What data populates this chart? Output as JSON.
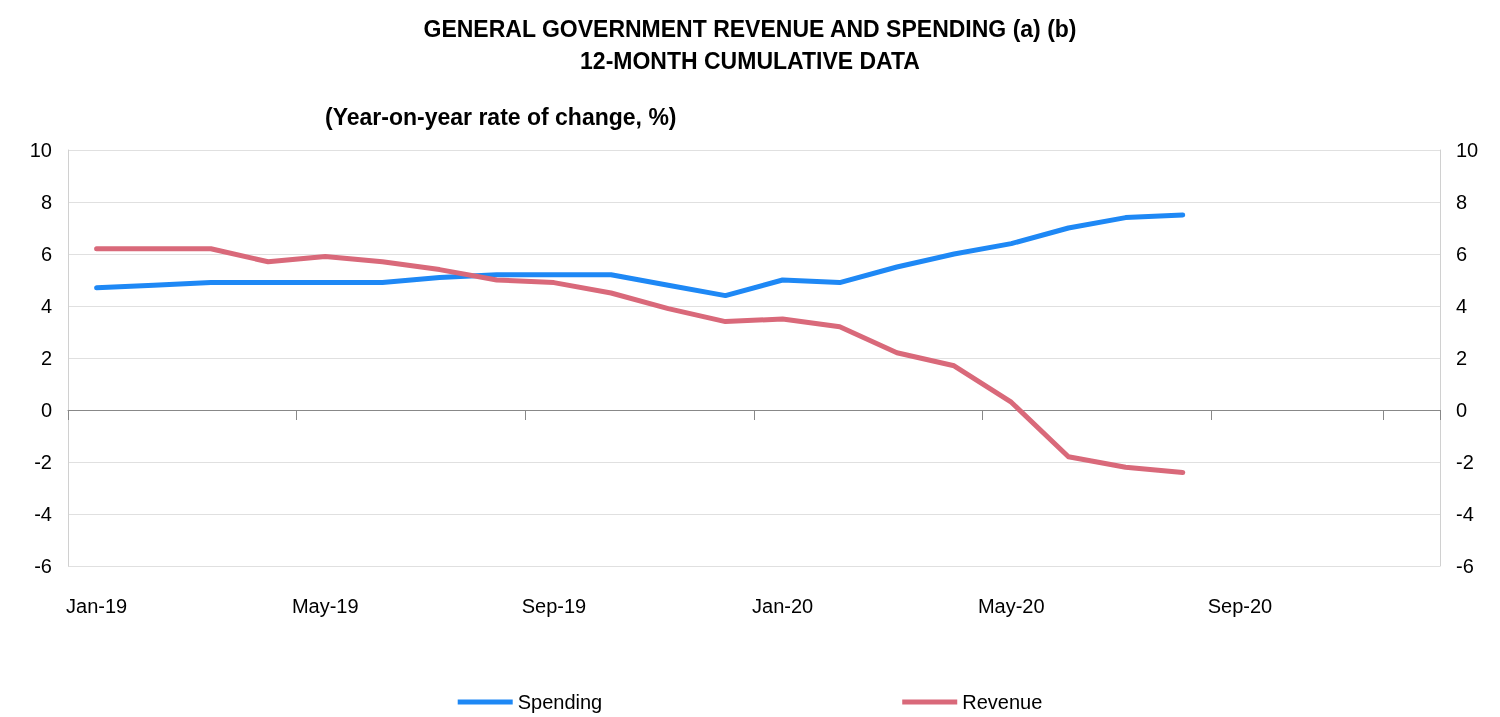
{
  "chart_data": {
    "type": "line",
    "title": "GENERAL GOVERNMENT REVENUE AND SPENDING (a) (b)\n12-MONTH CUMULATIVE DATA",
    "subtitle": "(Year-on-year rate of change, %)",
    "categories": [
      "Jan-19",
      null,
      null,
      null,
      "May-19",
      null,
      null,
      null,
      "Sep-19",
      null,
      null,
      null,
      "Jan-20",
      null,
      null,
      null,
      "May-20",
      null,
      null,
      null,
      "Sep-20",
      null,
      null,
      null
    ],
    "series": [
      {
        "name": "Spending",
        "color": "#1e88f5",
        "values": [
          4.7,
          4.8,
          4.9,
          4.9,
          4.9,
          4.9,
          5.1,
          5.2,
          5.2,
          5.2,
          4.8,
          4.4,
          5.0,
          4.9,
          5.5,
          6.0,
          6.4,
          7.0,
          7.4,
          7.5,
          null,
          null,
          null,
          null
        ]
      },
      {
        "name": "Revenue",
        "color": "#d9697a",
        "values": [
          6.2,
          6.2,
          6.2,
          5.7,
          5.9,
          5.7,
          5.4,
          5.0,
          4.9,
          4.5,
          3.9,
          3.4,
          3.5,
          3.2,
          2.2,
          1.7,
          0.3,
          -1.8,
          -2.2,
          -2.4,
          null,
          null,
          null,
          null
        ]
      }
    ],
    "ylim": [
      -6,
      10
    ],
    "yticks": [
      -6,
      -4,
      -2,
      0,
      2,
      4,
      6,
      8,
      10
    ],
    "y2lim": [
      -6,
      10
    ],
    "y2ticks": [
      -6,
      -4,
      -2,
      0,
      2,
      4,
      6,
      8,
      10
    ],
    "grid": "y",
    "legend": "bottom",
    "marker": "none",
    "line_style": "solid"
  }
}
